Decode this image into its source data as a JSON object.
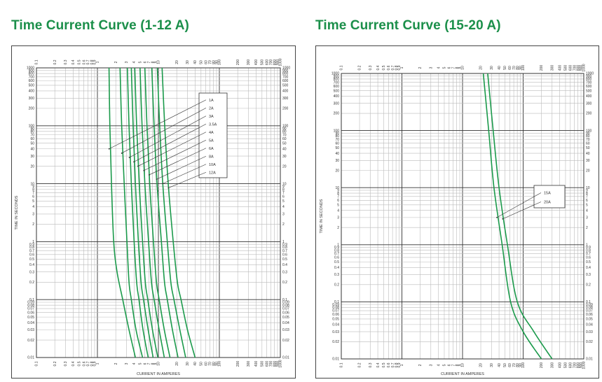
{
  "titles": [
    "Time Current Curve (1-12 A)",
    "Time Current Curve (15-20 A)"
  ],
  "colors": {
    "curve": "#1b9a4b",
    "title": "#1b8f4a",
    "grid_major": "#333333",
    "grid_minor": "#bdbdbd"
  },
  "chart_data": [
    {
      "type": "line",
      "title": "Time Current Curve (1-12 A)",
      "xlabel": "CURRENT IN AMPERES",
      "ylabel": "TIME IN SECONDS",
      "x_scale": "log",
      "y_scale": "log",
      "xlim": [
        0.1,
        1000
      ],
      "ylim": [
        0.01,
        1000
      ],
      "x_ticks": [
        "0.1",
        "0.2",
        "0.3",
        "0.4",
        "0.5",
        "0.6",
        "0.7",
        "0.8",
        "0.9",
        "1",
        "2",
        "3",
        "4",
        "5",
        "6",
        "7",
        "8",
        "9",
        "10",
        "20",
        "30",
        "40",
        "50",
        "60",
        "70",
        "80",
        "90",
        "100",
        "200",
        "300",
        "400",
        "500",
        "600",
        "700",
        "800",
        "900",
        "1000"
      ],
      "y_ticks": [
        "0.01",
        "0.02",
        "0.03",
        "0.04",
        "0.05",
        "0.06",
        "0.07",
        "0.08",
        "0.09",
        "0.1",
        "0.2",
        "0.3",
        "0.4",
        "0.5",
        "0.6",
        "0.7",
        "0.8",
        "0.9",
        "1",
        "2",
        "3",
        "4",
        "5",
        "6",
        "7",
        "8",
        "9",
        "10",
        "20",
        "30",
        "40",
        "50",
        "60",
        "70",
        "80",
        "90",
        "100",
        "200",
        "300",
        "400",
        "500",
        "600",
        "700",
        "800",
        "900",
        "1000"
      ],
      "grid": true,
      "legend": "callout-top-right",
      "series": [
        {
          "name": "1A",
          "points": [
            [
              1.55,
              1000
            ],
            [
              1.6,
              100
            ],
            [
              1.7,
              10
            ],
            [
              1.85,
              1
            ],
            [
              2.1,
              0.3
            ],
            [
              2.6,
              0.1
            ],
            [
              3.3,
              0.03
            ],
            [
              4.2,
              0.01
            ]
          ]
        },
        {
          "name": "2A",
          "points": [
            [
              2.35,
              1000
            ],
            [
              2.5,
              100
            ],
            [
              2.75,
              10
            ],
            [
              3.05,
              1
            ],
            [
              3.3,
              0.2
            ],
            [
              3.6,
              0.1
            ],
            [
              4.3,
              0.03
            ],
            [
              5.5,
              0.01
            ]
          ]
        },
        {
          "name": "3A",
          "points": [
            [
              3.1,
              1000
            ],
            [
              3.3,
              100
            ],
            [
              3.6,
              10
            ],
            [
              4.0,
              1
            ],
            [
              4.4,
              0.2
            ],
            [
              4.8,
              0.1
            ],
            [
              5.6,
              0.03
            ],
            [
              6.8,
              0.01
            ]
          ]
        },
        {
          "name": "3.5A",
          "points": [
            [
              3.6,
              1000
            ],
            [
              3.85,
              100
            ],
            [
              4.2,
              10
            ],
            [
              4.7,
              1
            ],
            [
              5.2,
              0.2
            ],
            [
              5.7,
              0.1
            ],
            [
              6.8,
              0.03
            ],
            [
              8.2,
              0.01
            ]
          ]
        },
        {
          "name": "4A",
          "points": [
            [
              4.1,
              1000
            ],
            [
              4.4,
              100
            ],
            [
              4.85,
              10
            ],
            [
              5.5,
              1
            ],
            [
              6.1,
              0.2
            ],
            [
              6.7,
              0.1
            ],
            [
              8.0,
              0.03
            ],
            [
              9.8,
              0.01
            ]
          ]
        },
        {
          "name": "5A",
          "points": [
            [
              5.0,
              1000
            ],
            [
              5.4,
              100
            ],
            [
              6.0,
              10
            ],
            [
              6.9,
              1
            ],
            [
              7.7,
              0.2
            ],
            [
              8.5,
              0.1
            ],
            [
              10.3,
              0.03
            ],
            [
              12.5,
              0.01
            ]
          ]
        },
        {
          "name": "6A",
          "points": [
            [
              6.0,
              1000
            ],
            [
              6.5,
              100
            ],
            [
              7.2,
              10
            ],
            [
              8.3,
              1
            ],
            [
              9.3,
              0.2
            ],
            [
              10.3,
              0.1
            ],
            [
              12.5,
              0.03
            ],
            [
              15.5,
              0.01
            ]
          ]
        },
        {
          "name": "8A",
          "points": [
            [
              7.8,
              1000
            ],
            [
              8.5,
              100
            ],
            [
              9.5,
              10
            ],
            [
              11.2,
              1
            ],
            [
              12.6,
              0.2
            ],
            [
              14.0,
              0.1
            ],
            [
              17.0,
              0.03
            ],
            [
              21.0,
              0.01
            ]
          ]
        },
        {
          "name": "10A",
          "points": [
            [
              9.6,
              1000
            ],
            [
              10.5,
              100
            ],
            [
              11.8,
              10
            ],
            [
              14.0,
              1
            ],
            [
              16.0,
              0.2
            ],
            [
              18.0,
              0.1
            ],
            [
              22.5,
              0.03
            ],
            [
              28.0,
              0.01
            ]
          ]
        },
        {
          "name": "12A",
          "points": [
            [
              11.5,
              1000
            ],
            [
              12.7,
              100
            ],
            [
              14.5,
              10
            ],
            [
              17.5,
              1
            ],
            [
              20.5,
              0.2
            ],
            [
              23.5,
              0.1
            ],
            [
              30.0,
              0.03
            ],
            [
              40.0,
              0.01
            ]
          ]
        }
      ]
    },
    {
      "type": "line",
      "title": "Time Current Curve (15-20 A)",
      "xlabel": "CURRENT IN AMPERES",
      "ylabel": "TIME IN SECONDS",
      "x_scale": "log",
      "y_scale": "log",
      "xlim": [
        0.1,
        1000
      ],
      "ylim": [
        0.01,
        1000
      ],
      "x_ticks": [
        "0.1",
        "0.2",
        "0.3",
        "0.4",
        "0.5",
        "0.6",
        "0.7",
        "0.8",
        "0.9",
        "1",
        "2",
        "3",
        "4",
        "5",
        "6",
        "7",
        "8",
        "9",
        "10",
        "20",
        "30",
        "40",
        "50",
        "60",
        "70",
        "80",
        "90",
        "100",
        "200",
        "300",
        "400",
        "500",
        "600",
        "700",
        "800",
        "900",
        "1000"
      ],
      "y_ticks": [
        "0.01",
        "0.02",
        "0.03",
        "0.04",
        "0.05",
        "0.06",
        "0.07",
        "0.08",
        "0.09",
        "0.1",
        "0.2",
        "0.3",
        "0.4",
        "0.5",
        "0.6",
        "0.7",
        "0.8",
        "0.9",
        "1",
        "2",
        "3",
        "4",
        "5",
        "6",
        "7",
        "8",
        "9",
        "10",
        "20",
        "30",
        "40",
        "50",
        "60",
        "70",
        "80",
        "90",
        "100",
        "200",
        "300",
        "400",
        "500",
        "600",
        "700",
        "800",
        "900",
        "1000"
      ],
      "grid": true,
      "legend": "callout-right",
      "series": [
        {
          "name": "15A",
          "points": [
            [
              22,
              1000
            ],
            [
              27,
              100
            ],
            [
              33,
              10
            ],
            [
              45,
              1
            ],
            [
              62,
              0.1
            ],
            [
              100,
              0.03
            ],
            [
              200,
              0.01
            ]
          ]
        },
        {
          "name": "20A",
          "points": [
            [
              26,
              1000
            ],
            [
              32,
              100
            ],
            [
              40,
              10
            ],
            [
              55,
              1
            ],
            [
              80,
              0.1
            ],
            [
              150,
              0.03
            ],
            [
              300,
              0.01
            ]
          ]
        }
      ]
    }
  ]
}
